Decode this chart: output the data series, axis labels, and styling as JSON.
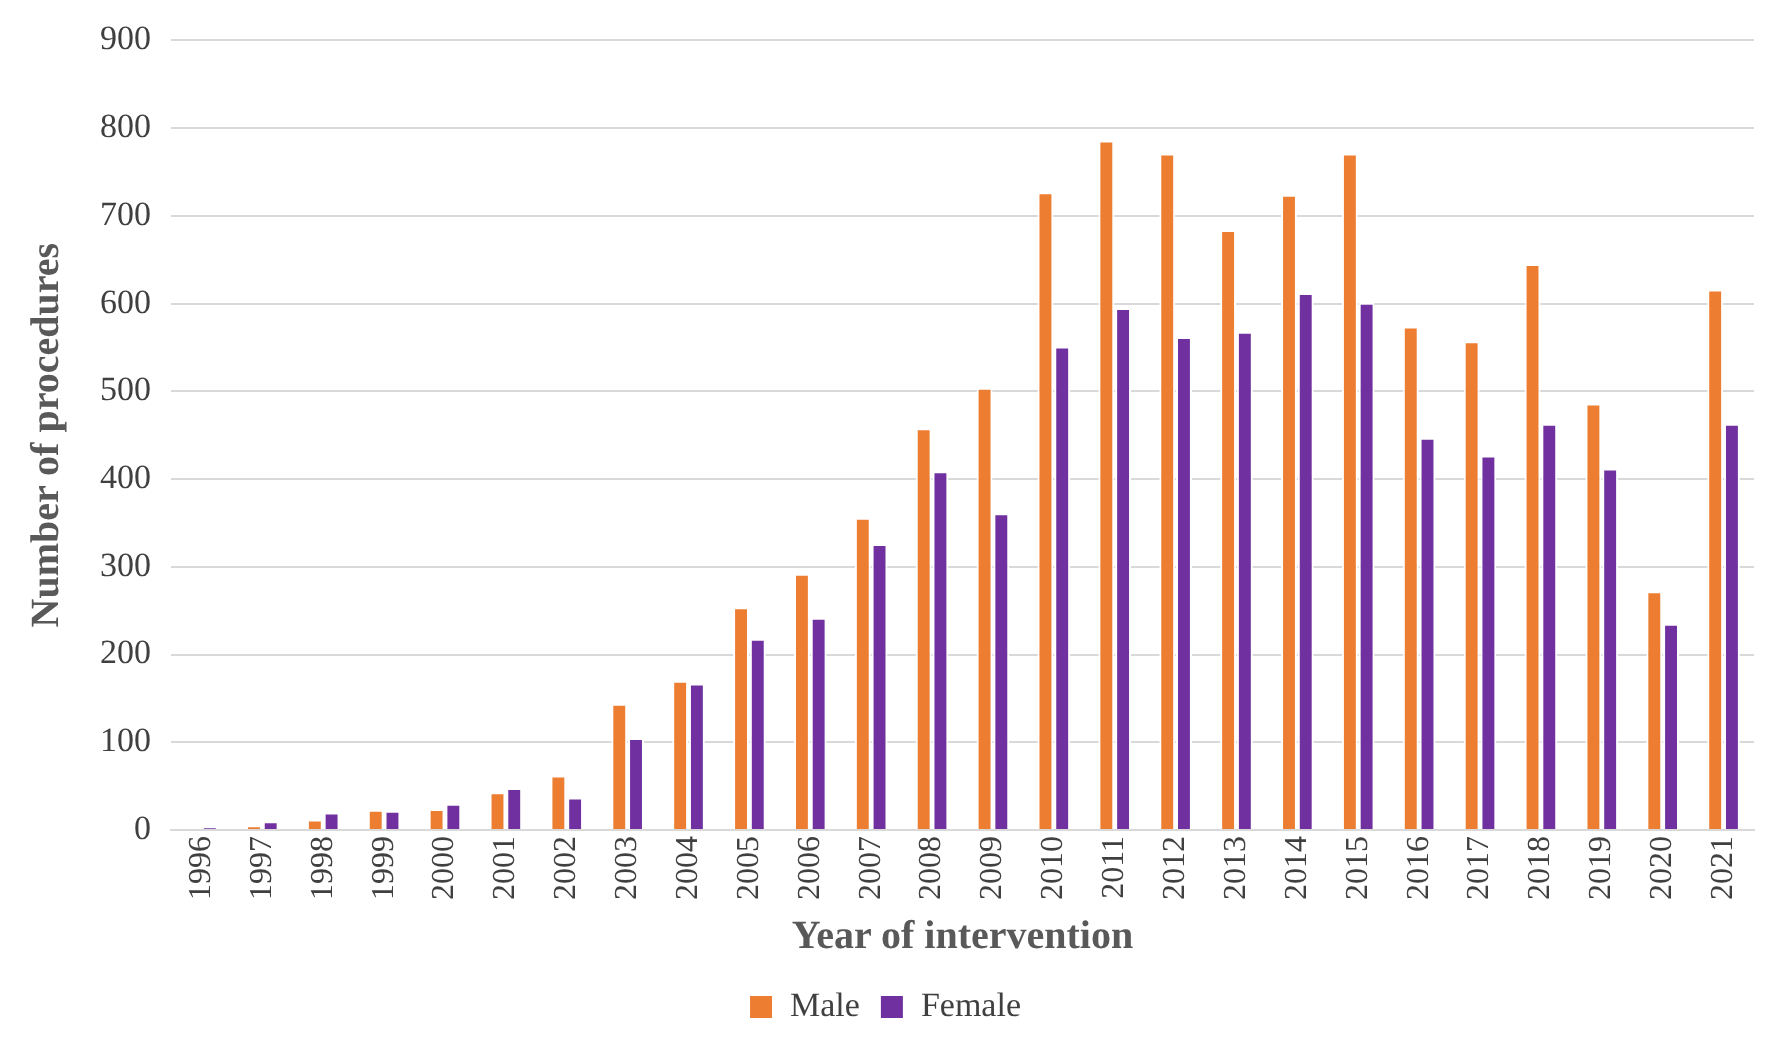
{
  "chart_data": {
    "type": "bar",
    "xlabel": "Year of intervention",
    "ylabel": "Number of procedures",
    "categories": [
      "1996",
      "1997",
      "1998",
      "1999",
      "2000",
      "2001",
      "2002",
      "2003",
      "2004",
      "2005",
      "2006",
      "2007",
      "2008",
      "2009",
      "2010",
      "2011",
      "2012",
      "2013",
      "2014",
      "2015",
      "2016",
      "2017",
      "2018",
      "2019",
      "2020",
      "2021"
    ],
    "series": [
      {
        "name": "Male",
        "color": "#ed7d31",
        "values": [
          0,
          5,
          12,
          23,
          24,
          43,
          62,
          144,
          170,
          254,
          292,
          356,
          458,
          504,
          727,
          786,
          771,
          684,
          724,
          771,
          574,
          557,
          645,
          486,
          272,
          616
        ]
      },
      {
        "name": "Female",
        "color": "#7030a0",
        "values": [
          3,
          10,
          20,
          22,
          30,
          48,
          37,
          105,
          167,
          218,
          242,
          326,
          409,
          361,
          551,
          595,
          562,
          568,
          612,
          601,
          447,
          427,
          463,
          412,
          235,
          463
        ]
      }
    ],
    "ylim": [
      0,
      900
    ],
    "yticks": [
      0,
      100,
      200,
      300,
      400,
      500,
      600,
      700,
      800,
      900
    ],
    "grid": "y",
    "legend": "bottom"
  }
}
